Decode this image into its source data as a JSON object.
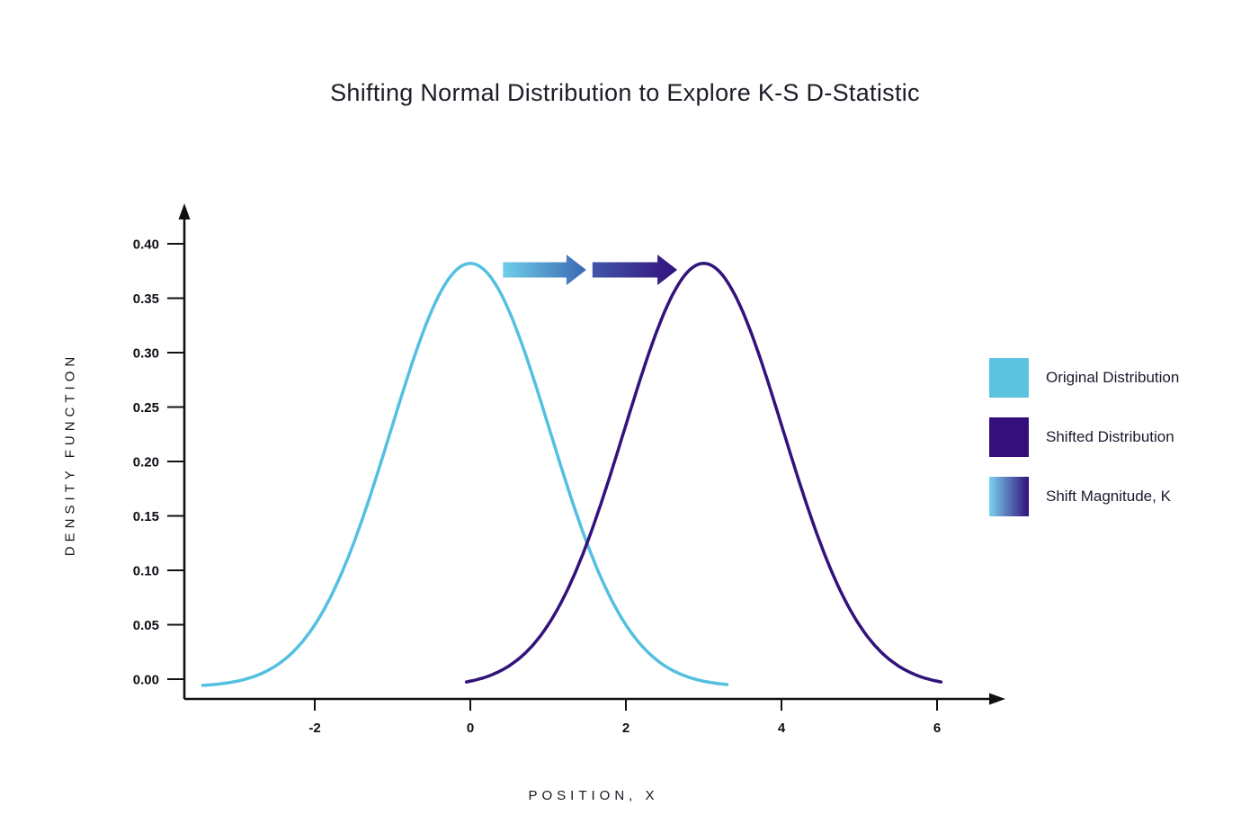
{
  "chart_data": {
    "type": "line",
    "title": "Shifting Normal Distribution to Explore K-S D-Statistic",
    "xlabel": "POSITION, X",
    "ylabel": "DENSITY FUNCTION",
    "xlim": [
      -3.7,
      6.9
    ],
    "ylim": [
      -0.02,
      0.44
    ],
    "xticks": [
      "-2",
      "0",
      "2",
      "4",
      "6"
    ],
    "yticks": [
      "0.00",
      "0.05",
      "0.10",
      "0.15",
      "0.20",
      "0.25",
      "0.30",
      "0.35",
      "0.40"
    ],
    "grid": false,
    "legend_position": "right",
    "series": [
      {
        "name": "Original Distribution",
        "shape": "gaussian",
        "mean": 0.0,
        "sigma": 1.02,
        "amplitude": 0.389,
        "baseline": -0.007,
        "peak_density": 0.382,
        "x_range": [
          -3.44,
          3.3
        ],
        "color": "#53c0e0",
        "line_width": 3.5
      },
      {
        "name": "Shifted Distribution",
        "shape": "gaussian",
        "mean": 3.0,
        "sigma": 1.02,
        "amplitude": 0.389,
        "baseline": -0.007,
        "peak_density": 0.382,
        "x_range": [
          -0.05,
          6.05
        ],
        "color": "#32137b",
        "line_width": 3.5
      }
    ],
    "shift_annotation": {
      "label": "Shift Magnitude, K",
      "shift_value": 3.0,
      "y": 0.376,
      "arrows": [
        {
          "x_from": 0.42,
          "x_to": 1.49,
          "color_from": "#6fcdea",
          "color_to": "#3a68b2"
        },
        {
          "x_from": 1.57,
          "x_to": 2.66,
          "color_from": "#4155a9",
          "color_to": "#33117e"
        }
      ]
    }
  },
  "legend": {
    "items": [
      {
        "label": "Original Distribution",
        "color": "#5cc3e1"
      },
      {
        "label": "Shifted Distribution",
        "color": "#33107c"
      },
      {
        "label": "Shift Magnitude, K",
        "gradient": [
          "#7ad2ec",
          "#33107c"
        ]
      }
    ]
  },
  "axes": {
    "color": "#111111"
  }
}
